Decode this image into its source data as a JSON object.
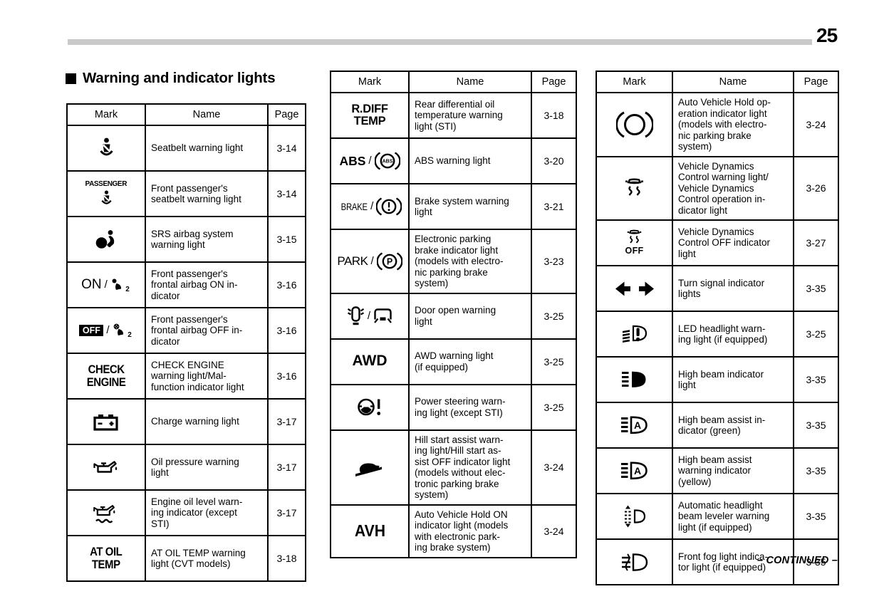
{
  "page": {
    "number": "25",
    "section_title": "Warning and indicator lights",
    "continued": "– CONTINUED –"
  },
  "colors": {
    "text": "#000000",
    "background": "#ffffff",
    "header_bar": "#c9c9c9"
  },
  "table_headers": {
    "mark": "Mark",
    "name": "Name",
    "page": "Page"
  },
  "tables": [
    {
      "id": "warning-lights-1",
      "rows": [
        {
          "mark": [
            {
              "t": "icon",
              "v": "seatbelt"
            }
          ],
          "name": "Seatbelt warning light",
          "page": "3-14"
        },
        {
          "stack": true,
          "mark": [
            {
              "t": "text",
              "v": "PASSENGER",
              "c": "mk-passenger"
            },
            {
              "t": "icon",
              "v": "seatbelt-small"
            }
          ],
          "name": "Front passenger's\nseatbelt warning light",
          "page": "3-14"
        },
        {
          "mark": [
            {
              "t": "icon",
              "v": "srs-airbag"
            }
          ],
          "name": "SRS airbag system\nwarning light",
          "page": "3-15"
        },
        {
          "mark": [
            {
              "t": "text",
              "v": "ON",
              "c": "mk-on"
            },
            {
              "t": "text",
              "v": "/",
              "c": "mk-slash"
            },
            {
              "t": "icon",
              "v": "passenger-airbag-on"
            }
          ],
          "name": "Front passenger's\nfrontal airbag ON in-\ndicator",
          "page": "3-16"
        },
        {
          "mark": [
            {
              "t": "text",
              "v": "OFF",
              "c": "mk-badge"
            },
            {
              "t": "text",
              "v": "/",
              "c": "mk-slash"
            },
            {
              "t": "icon",
              "v": "passenger-airbag-off"
            }
          ],
          "name": "Front passenger's\nfrontal airbag OFF in-\ndicator",
          "page": "3-16"
        },
        {
          "mark": [
            {
              "t": "text",
              "v": "CHECK\nENGINE",
              "c": "mk-cond2"
            }
          ],
          "name": "CHECK ENGINE\nwarning light/Mal-\nfunction indicator light",
          "page": "3-16"
        },
        {
          "mark": [
            {
              "t": "icon",
              "v": "battery"
            }
          ],
          "name": "Charge warning light",
          "page": "3-17"
        },
        {
          "mark": [
            {
              "t": "icon",
              "v": "oil-pressure"
            }
          ],
          "name": "Oil pressure warning\nlight",
          "page": "3-17"
        },
        {
          "mark": [
            {
              "t": "icon",
              "v": "oil-level"
            }
          ],
          "name": "Engine oil level warn-\ning indicator (except\nSTI)",
          "page": "3-17"
        },
        {
          "mark": [
            {
              "t": "text",
              "v": "AT OIL\nTEMP",
              "c": "mk-cond2"
            }
          ],
          "name": "AT OIL TEMP warning\nlight (CVT models)",
          "page": "3-18"
        }
      ]
    },
    {
      "id": "warning-lights-2",
      "rows": [
        {
          "mark": [
            {
              "t": "text",
              "v": "R.DIFF\nTEMP",
              "c": "mk-bold2"
            }
          ],
          "name": "Rear differential oil\ntemperature warning\nlight (STI)",
          "page": "3-18"
        },
        {
          "mark": [
            {
              "t": "text",
              "v": "ABS",
              "c": "mk-abs"
            },
            {
              "t": "text",
              "v": "/",
              "c": "mk-slash"
            },
            {
              "t": "icon",
              "v": "abs-ring"
            }
          ],
          "name": "ABS warning light",
          "page": "3-20"
        },
        {
          "mark": [
            {
              "t": "text",
              "v": "BRAKE",
              "c": "mk-brake"
            },
            {
              "t": "text",
              "v": "/",
              "c": "mk-slash"
            },
            {
              "t": "icon",
              "v": "brake-ring"
            }
          ],
          "name": "Brake system warning\nlight",
          "page": "3-21"
        },
        {
          "mark": [
            {
              "t": "text",
              "v": "PARK",
              "c": "mk-park"
            },
            {
              "t": "text",
              "v": "/",
              "c": "mk-slash"
            },
            {
              "t": "icon",
              "v": "park-ring"
            }
          ],
          "name": "Electronic parking\nbrake indicator light\n(models with electro-\nnic parking brake\nsystem)",
          "page": "3-23"
        },
        {
          "mark": [
            {
              "t": "icon",
              "v": "door-open-top"
            },
            {
              "t": "text",
              "v": "/",
              "c": "mk-slash"
            },
            {
              "t": "icon",
              "v": "door-open-side"
            }
          ],
          "name": "Door open warning\nlight",
          "page": "3-25"
        },
        {
          "mark": [
            {
              "t": "text",
              "v": "AWD",
              "c": "mk-awd"
            }
          ],
          "name": "AWD warning light\n(if equipped)",
          "page": "3-25"
        },
        {
          "mark": [
            {
              "t": "icon",
              "v": "power-steering"
            }
          ],
          "name": "Power steering warn-\ning light (except STI)",
          "page": "3-25"
        },
        {
          "mark": [
            {
              "t": "icon",
              "v": "hill-start"
            }
          ],
          "name": "Hill start assist warn-\ning light/Hill start as-\nsist OFF indicator light\n(models without elec-\ntronic parking brake\nsystem)",
          "page": "3-24"
        },
        {
          "mark": [
            {
              "t": "text",
              "v": "AVH",
              "c": "mk-avh"
            }
          ],
          "name": "Auto Vehicle Hold ON\nindicator light (models\nwith electronic park-\ning brake system)",
          "page": "3-24"
        }
      ]
    },
    {
      "id": "warning-lights-3",
      "rows": [
        {
          "mark": [
            {
              "t": "icon",
              "v": "brake-hold-ring"
            }
          ],
          "name": "Auto Vehicle Hold op-\neration indicator light\n(models with electro-\nnic parking brake\nsystem)",
          "page": "3-24"
        },
        {
          "mark": [
            {
              "t": "icon",
              "v": "vdc"
            }
          ],
          "name": "Vehicle Dynamics\nControl warning light/\nVehicle Dynamics\nControl operation in-\ndicator light",
          "page": "3-26"
        },
        {
          "stack": true,
          "mark": [
            {
              "t": "icon",
              "v": "vdc-small"
            },
            {
              "t": "text",
              "v": "OFF",
              "c": "mk-off-label"
            }
          ],
          "name": "Vehicle Dynamics\nControl OFF indicator\nlight",
          "page": "3-27"
        },
        {
          "mark": [
            {
              "t": "icon",
              "v": "turn-signals"
            }
          ],
          "name": "Turn signal indicator\nlights",
          "page": "3-35"
        },
        {
          "mark": [
            {
              "t": "icon",
              "v": "led-headlight"
            }
          ],
          "name": "LED headlight warn-\ning light (if equipped)",
          "page": "3-25"
        },
        {
          "mark": [
            {
              "t": "icon",
              "v": "high-beam"
            }
          ],
          "name": "High beam indicator\nlight",
          "page": "3-35"
        },
        {
          "mark": [
            {
              "t": "icon",
              "v": "high-beam-assist"
            }
          ],
          "name": "High beam assist in-\ndicator (green)",
          "page": "3-35"
        },
        {
          "mark": [
            {
              "t": "icon",
              "v": "high-beam-assist"
            }
          ],
          "name": "High beam assist\nwarning indicator\n(yellow)",
          "page": "3-35"
        },
        {
          "mark": [
            {
              "t": "icon",
              "v": "headlight-leveler"
            }
          ],
          "name": "Automatic headlight\nbeam leveler warning\nlight (if equipped)",
          "page": "3-35"
        },
        {
          "mark": [
            {
              "t": "icon",
              "v": "front-fog"
            }
          ],
          "name": "Front fog light indica-\ntor light (if equipped)",
          "page": "3-35"
        }
      ]
    }
  ]
}
